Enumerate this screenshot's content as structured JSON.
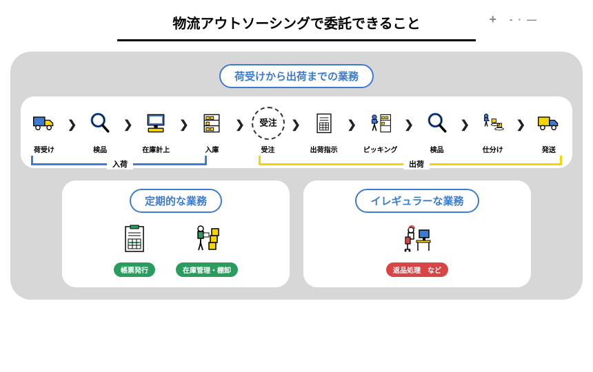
{
  "title": "物流アウトソーシングで委託できること",
  "colors": {
    "accent_blue": "#3b7bd4",
    "accent_yellow": "#f5d400",
    "accent_green": "#2a9d5e",
    "accent_red": "#d94545",
    "bg_gray": "#d7d7d7"
  },
  "section1": {
    "title": "荷受けから出荷までの業務",
    "bracket_in": "入荷",
    "bracket_out": "出荷",
    "steps": [
      {
        "label": "荷受け",
        "icon": "truck"
      },
      {
        "label": "検品",
        "icon": "magnifier"
      },
      {
        "label": "在庫計上",
        "icon": "computer"
      },
      {
        "label": "入庫",
        "icon": "shelf"
      },
      {
        "label": "受注",
        "icon": "order",
        "dashed": true
      },
      {
        "label": "出荷指示",
        "icon": "document"
      },
      {
        "label": "ピッキング",
        "icon": "picking"
      },
      {
        "label": "検品",
        "icon": "magnifier"
      },
      {
        "label": "仕分け",
        "icon": "sorting"
      },
      {
        "label": "発送",
        "icon": "truck-out"
      }
    ]
  },
  "section2": {
    "title": "定期的な業務",
    "items": [
      {
        "label": "帳票発行",
        "icon": "form",
        "pill": "pg"
      },
      {
        "label": "在庫管理・棚卸",
        "icon": "inventory",
        "pill": "pg"
      }
    ]
  },
  "section3": {
    "title": "イレギュラーな業務",
    "items": [
      {
        "label": "返品処理　など",
        "icon": "desk",
        "pill": "pr"
      }
    ]
  }
}
